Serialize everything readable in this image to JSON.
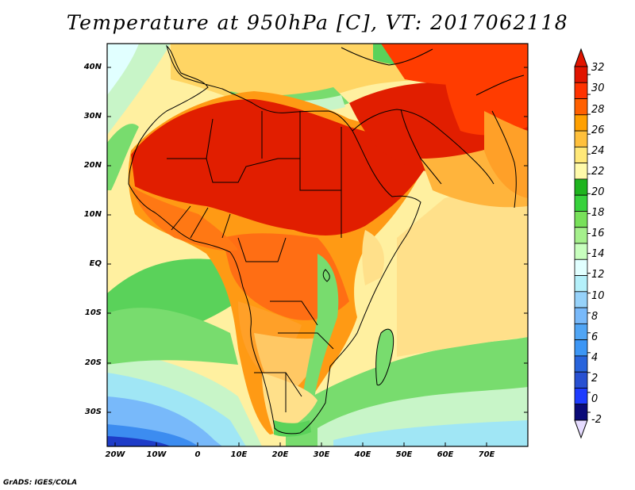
{
  "title": "Temperature at 950hPa [C], VT: 2017062118",
  "credit": "GrADS: IGES/COLA",
  "map": {
    "region": "Africa and Arabian Peninsula",
    "lat_range": [
      -36,
      45
    ],
    "lon_range": [
      -22,
      80
    ],
    "lat_ticks": [
      "40N",
      "30N",
      "20N",
      "10N",
      "EQ",
      "10S",
      "20S",
      "30S"
    ],
    "lon_ticks": [
      "20W",
      "10W",
      "0",
      "10E",
      "20E",
      "30E",
      "40E",
      "50E",
      "60E",
      "70E"
    ],
    "variable": "Temperature at 950hPa",
    "units": "C"
  },
  "colorbar": {
    "labels": [
      "32",
      "30",
      "28",
      "26",
      "24",
      "22",
      "20",
      "18",
      "16",
      "14",
      "12",
      "10",
      "8",
      "6",
      "4",
      "2",
      "0",
      "-2"
    ],
    "colors": [
      "#a0f5ff",
      "#1e3cff",
      "#2850d2",
      "#2864dc",
      "#3c96f5",
      "#50a5f5",
      "#78b9fa",
      "#96d2fa",
      "#b4f0fa",
      "#e1ffff",
      "#c8ffbe",
      "#a5f08c",
      "#78e15a",
      "#37d23c",
      "#1eb41e",
      "#fffaaa",
      "#ffe878",
      "#ffc03c",
      "#ffa000",
      "#ff6000",
      "#ff3200",
      "#e11400",
      "#c00000"
    ],
    "bottom_color": "#0a0a78",
    "top_color": "#e11400",
    "under_triangle_color": "#e6dcff"
  }
}
